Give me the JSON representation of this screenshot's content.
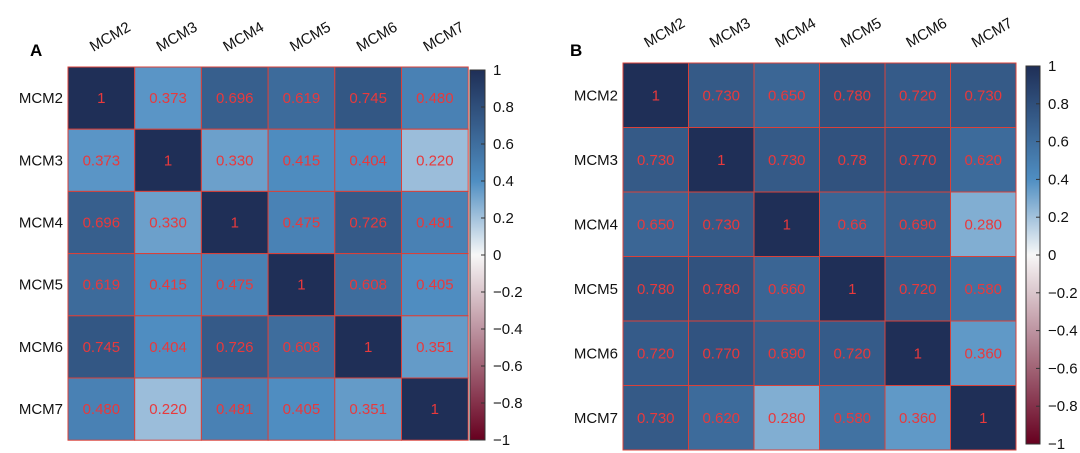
{
  "colors": {
    "scale_low": "#67001f",
    "scale_mid": "#f7f7f7",
    "scale_high": "#1f2f57",
    "cell_text": "#e8393c",
    "cell_border": "#d9413a"
  },
  "chart_data": [
    {
      "panel": "A",
      "type": "heatmap",
      "row_labels": [
        "MCM2",
        "MCM3",
        "MCM4",
        "MCM5",
        "MCM6",
        "MCM7"
      ],
      "col_labels": [
        "MCM2",
        "MCM3",
        "MCM4",
        "MCM5",
        "MCM6",
        "MCM7"
      ],
      "values": [
        [
          1,
          0.373,
          0.696,
          0.619,
          0.745,
          0.48
        ],
        [
          0.373,
          1,
          0.33,
          0.415,
          0.404,
          0.22
        ],
        [
          0.696,
          0.33,
          1,
          0.475,
          0.726,
          0.481
        ],
        [
          0.619,
          0.415,
          0.475,
          1,
          0.608,
          0.405
        ],
        [
          0.745,
          0.404,
          0.726,
          0.608,
          1,
          0.351
        ],
        [
          0.48,
          0.22,
          0.481,
          0.405,
          0.351,
          1
        ]
      ],
      "cell_text": [
        [
          "1",
          "0.373",
          "0.696",
          "0.619",
          "0.745",
          "0.480"
        ],
        [
          "0.373",
          "1",
          "0.330",
          "0.415",
          "0.404",
          "0.220"
        ],
        [
          "0.696",
          "0.330",
          "1",
          "0.475",
          "0.726",
          "0.481"
        ],
        [
          "0.619",
          "0.415",
          "0.475",
          "1",
          "0.608",
          "0.405"
        ],
        [
          "0.745",
          "0.404",
          "0.726",
          "0.608",
          "1",
          "0.351"
        ],
        [
          "0.480",
          "0.220",
          "0.481",
          "0.405",
          "0.351",
          "1"
        ]
      ],
      "colorbar": {
        "range": [
          -1,
          1
        ],
        "ticks": [
          1,
          0.8,
          0.6,
          0.4,
          0.2,
          0,
          -0.2,
          -0.4,
          -0.6,
          -0.8,
          -1
        ],
        "tick_labels": [
          "1",
          "0.8",
          "0.6",
          "0.4",
          "0.2",
          "0",
          "−0.2",
          "−0.4",
          "−0.6",
          "−0.8",
          "−1"
        ]
      }
    },
    {
      "panel": "B",
      "type": "heatmap",
      "row_labels": [
        "MCM2",
        "MCM3",
        "MCM4",
        "MCM5",
        "MCM6",
        "MCM7"
      ],
      "col_labels": [
        "MCM2",
        "MCM3",
        "MCM4",
        "MCM5",
        "MCM6",
        "MCM7"
      ],
      "values": [
        [
          1,
          0.73,
          0.65,
          0.78,
          0.72,
          0.73
        ],
        [
          0.73,
          1,
          0.73,
          0.78,
          0.77,
          0.62
        ],
        [
          0.65,
          0.73,
          1,
          0.66,
          0.69,
          0.28
        ],
        [
          0.78,
          0.78,
          0.66,
          1,
          0.72,
          0.58
        ],
        [
          0.72,
          0.77,
          0.69,
          0.72,
          1,
          0.36
        ],
        [
          0.73,
          0.62,
          0.28,
          0.58,
          0.36,
          1
        ]
      ],
      "cell_text": [
        [
          "1",
          "0.730",
          "0.650",
          "0.780",
          "0.720",
          "0.730"
        ],
        [
          "0.730",
          "1",
          "0.730",
          "0.78",
          "0.770",
          "0.620"
        ],
        [
          "0.650",
          "0.730",
          "1",
          "0.66",
          "0.690",
          "0.280"
        ],
        [
          "0.780",
          "0.780",
          "0.660",
          "1",
          "0.720",
          "0.580"
        ],
        [
          "0.720",
          "0.770",
          "0.690",
          "0.720",
          "1",
          "0.360"
        ],
        [
          "0.730",
          "0.620",
          "0.280",
          "0.580",
          "0.360",
          "1"
        ]
      ],
      "colorbar": {
        "range": [
          -1,
          1
        ],
        "ticks": [
          1,
          0.8,
          0.6,
          0.4,
          0.2,
          0,
          -0.2,
          -0.4,
          -0.6,
          -0.8,
          -1
        ],
        "tick_labels": [
          "1",
          "0.8",
          "0.6",
          "0.4",
          "0.2",
          "0",
          "−0.2",
          "−0.4",
          "−0.6",
          "−0.8",
          "−1"
        ]
      }
    }
  ]
}
